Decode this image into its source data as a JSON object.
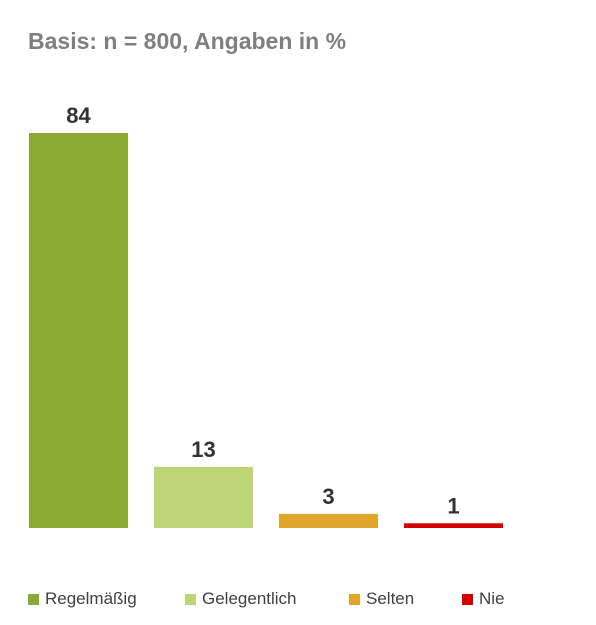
{
  "chart_data": {
    "type": "bar",
    "title": "Basis: n = 800, Angaben in %",
    "categories": [
      "Regelmäßig",
      "Gelegentlich",
      "Selten",
      "Nie"
    ],
    "values": [
      84,
      13,
      3,
      1
    ],
    "colors": [
      "#8aaa35",
      "#bed577",
      "#e0a52b",
      "#d40000"
    ],
    "ylim": [
      0,
      84
    ],
    "grid": false,
    "legend_position": "bottom",
    "data_labels": true
  }
}
